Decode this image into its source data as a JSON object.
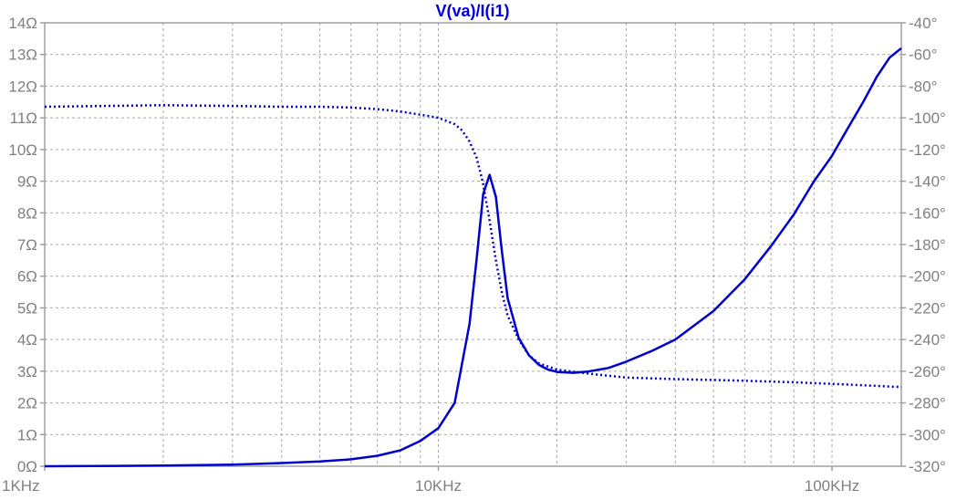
{
  "chart_data": {
    "type": "line",
    "title": "V(va)/I(i1)",
    "xscale": "log",
    "xlim_hz": [
      1000,
      150000
    ],
    "ylim_left": [
      0,
      14
    ],
    "ylim_right": [
      -320,
      -40
    ],
    "x_ticks": [
      {
        "value": 1000,
        "label": "1KHz"
      },
      {
        "value": 10000,
        "label": "10KHz"
      },
      {
        "value": 100000,
        "label": "100KHz"
      }
    ],
    "y_left_ticks": [
      "0Ω",
      "1Ω",
      "2Ω",
      "3Ω",
      "4Ω",
      "5Ω",
      "6Ω",
      "7Ω",
      "8Ω",
      "9Ω",
      "10Ω",
      "11Ω",
      "12Ω",
      "13Ω",
      "14Ω"
    ],
    "y_left_values": [
      0,
      1,
      2,
      3,
      4,
      5,
      6,
      7,
      8,
      9,
      10,
      11,
      12,
      13,
      14
    ],
    "y_right_ticks": [
      "-40°",
      "-60°",
      "-80°",
      "-100°",
      "-120°",
      "-140°",
      "-160°",
      "-180°",
      "-200°",
      "-220°",
      "-240°",
      "-260°",
      "-280°",
      "-300°",
      "-320°"
    ],
    "y_right_values": [
      -40,
      -60,
      -80,
      -100,
      -120,
      -140,
      -160,
      -180,
      -200,
      -220,
      -240,
      -260,
      -280,
      -300,
      -320
    ],
    "grid": true,
    "colors": {
      "trace": "#0000cc",
      "grid": "#a8a8a8",
      "axis": "#a0a0a0",
      "title": "#0000dd"
    },
    "series": [
      {
        "name": "magnitude",
        "style": "solid",
        "axis": "left",
        "unit": "Ω",
        "x": [
          1000,
          2000,
          3000,
          4000,
          5000,
          6000,
          7000,
          8000,
          9000,
          10000,
          11000,
          12000,
          12500,
          13000,
          13500,
          14000,
          14500,
          15000,
          16000,
          17000,
          18000,
          19000,
          20000,
          22000,
          24000,
          27000,
          30000,
          35000,
          40000,
          50000,
          60000,
          70000,
          80000,
          90000,
          100000,
          110000,
          120000,
          130000,
          140000,
          150000
        ],
        "values": [
          0.0,
          0.02,
          0.05,
          0.1,
          0.15,
          0.22,
          0.33,
          0.5,
          0.8,
          1.2,
          2.0,
          4.5,
          6.5,
          8.6,
          9.2,
          8.5,
          6.8,
          5.3,
          4.05,
          3.5,
          3.2,
          3.05,
          2.98,
          2.95,
          2.99,
          3.1,
          3.3,
          3.65,
          4.0,
          4.9,
          5.9,
          6.95,
          7.95,
          9.0,
          9.8,
          10.7,
          11.5,
          12.3,
          12.9,
          13.2
        ]
      },
      {
        "name": "phase",
        "style": "dotted",
        "axis": "right",
        "unit": "°",
        "x": [
          1000,
          2000,
          3000,
          4000,
          5000,
          6000,
          7000,
          8000,
          9000,
          10000,
          11000,
          11500,
          12000,
          12500,
          12800,
          13000,
          13500,
          14000,
          14500,
          15000,
          16000,
          17000,
          18000,
          20000,
          25000,
          30000,
          40000,
          60000,
          80000,
          100000,
          150000
        ],
        "values": [
          -93,
          -92,
          -92.5,
          -93,
          -93,
          -93.5,
          -94.5,
          -96,
          -98,
          -100,
          -104,
          -108,
          -115,
          -125,
          -135,
          -142,
          -165,
          -190,
          -210,
          -225,
          -240,
          -250,
          -255,
          -259,
          -262,
          -264,
          -265,
          -266,
          -267,
          -268,
          -270
        ]
      }
    ]
  }
}
